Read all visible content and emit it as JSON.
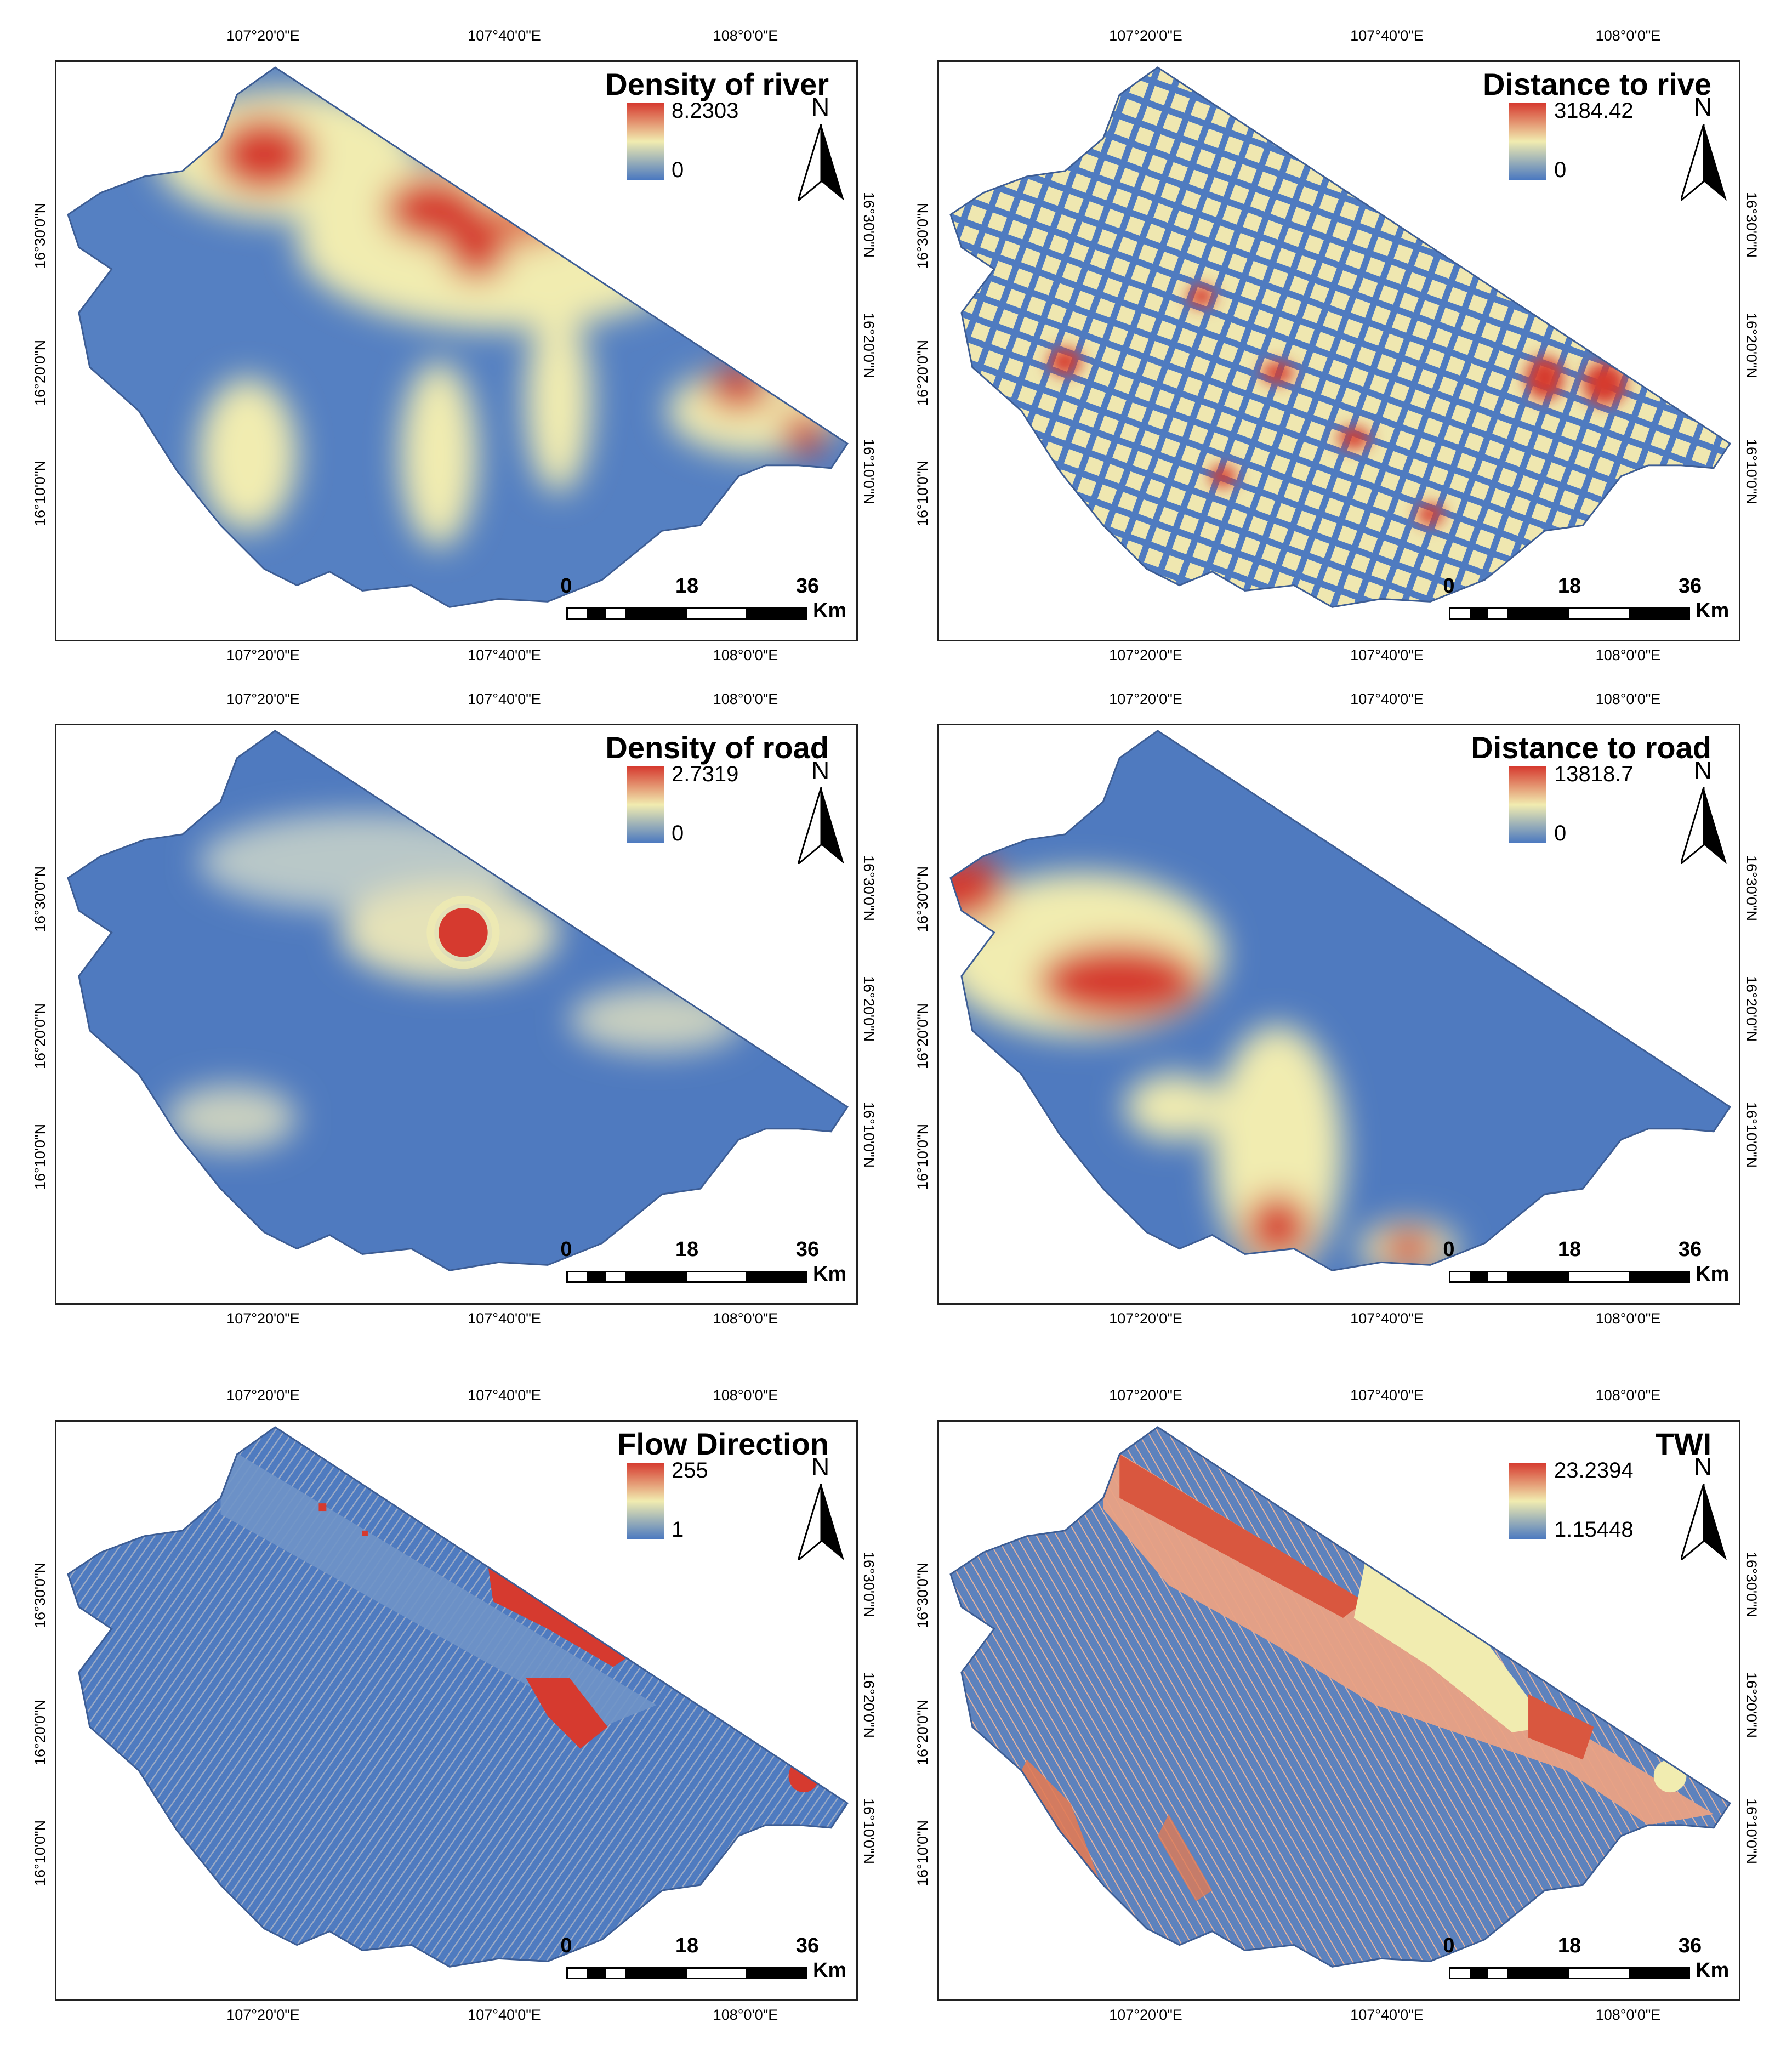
{
  "shared": {
    "lon_ticks": [
      "107°20'0\"E",
      "107°40'0\"E",
      "108°0'0\"E"
    ],
    "lat_ticks": [
      "16°30'0\"N",
      "16°20'0\"N",
      "16°10'0\"N"
    ],
    "north_label": "N",
    "scale": {
      "labels": [
        "0",
        "18",
        "36"
      ],
      "unit": "Km"
    },
    "colors": {
      "low": "#4a78c0",
      "mid": "#f1ecb0",
      "high": "#d63a2f"
    }
  },
  "panels": [
    {
      "id": "density-river",
      "title": "Density of river",
      "legend_max": "8.2303",
      "legend_min": "0"
    },
    {
      "id": "distance-river",
      "title": "Distance to rive",
      "legend_max": "3184.42",
      "legend_min": "0"
    },
    {
      "id": "density-road",
      "title": "Density of road",
      "legend_max": "2.7319",
      "legend_min": "0"
    },
    {
      "id": "distance-road",
      "title": "Distance to road",
      "legend_max": "13818.7",
      "legend_min": "0"
    },
    {
      "id": "flow-direction",
      "title": "Flow Direction",
      "legend_max": "255",
      "legend_min": "1"
    },
    {
      "id": "twi",
      "title": "TWI",
      "legend_max": "23.2394",
      "legend_min": "1.15448"
    }
  ]
}
